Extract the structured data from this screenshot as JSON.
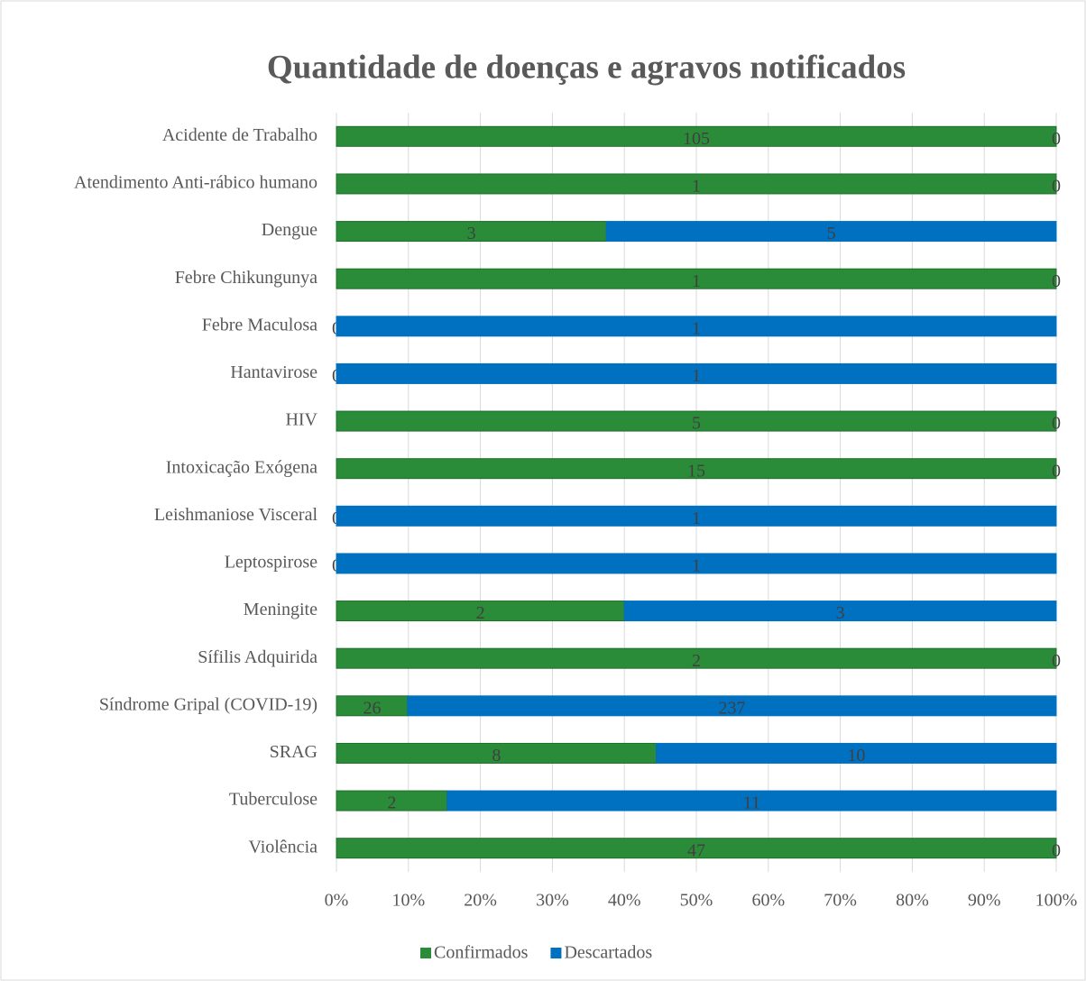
{
  "chart_data": {
    "type": "bar",
    "orientation": "horizontal",
    "stacked": "percent",
    "title": "Quantidade de doenças e agravos notificados",
    "categories": [
      "Acidente de Trabalho",
      "Atendimento Anti-rábico humano",
      "Dengue",
      "Febre Chikungunya",
      "Febre Maculosa",
      "Hantavirose",
      "HIV",
      "Intoxicação Exógena",
      "Leishmaniose Visceral",
      "Leptospirose",
      "Meningite",
      "Sífilis Adquirida",
      "Síndrome Gripal (COVID-19)",
      "SRAG",
      "Tuberculose",
      "Violência"
    ],
    "series": [
      {
        "name": "Confirmados",
        "color": "#2a8c38",
        "values": [
          105,
          1,
          3,
          1,
          0,
          0,
          5,
          15,
          0,
          0,
          2,
          2,
          26,
          8,
          2,
          47
        ]
      },
      {
        "name": "Descartados",
        "color": "#0070c0",
        "values": [
          0,
          0,
          5,
          0,
          1,
          1,
          0,
          0,
          1,
          1,
          3,
          0,
          237,
          10,
          11,
          0
        ]
      }
    ],
    "xlim": [
      0,
      100
    ],
    "xticks": [
      {
        "value": 0,
        "label": "0%"
      },
      {
        "value": 10,
        "label": "10%"
      },
      {
        "value": 20,
        "label": "20%"
      },
      {
        "value": 30,
        "label": "30%"
      },
      {
        "value": 40,
        "label": "40%"
      },
      {
        "value": 50,
        "label": "50%"
      },
      {
        "value": 60,
        "label": "60%"
      },
      {
        "value": 70,
        "label": "70%"
      },
      {
        "value": 80,
        "label": "80%"
      },
      {
        "value": 90,
        "label": "90%"
      },
      {
        "value": 100,
        "label": "100%"
      }
    ],
    "grid": true,
    "legend": "bottom"
  }
}
